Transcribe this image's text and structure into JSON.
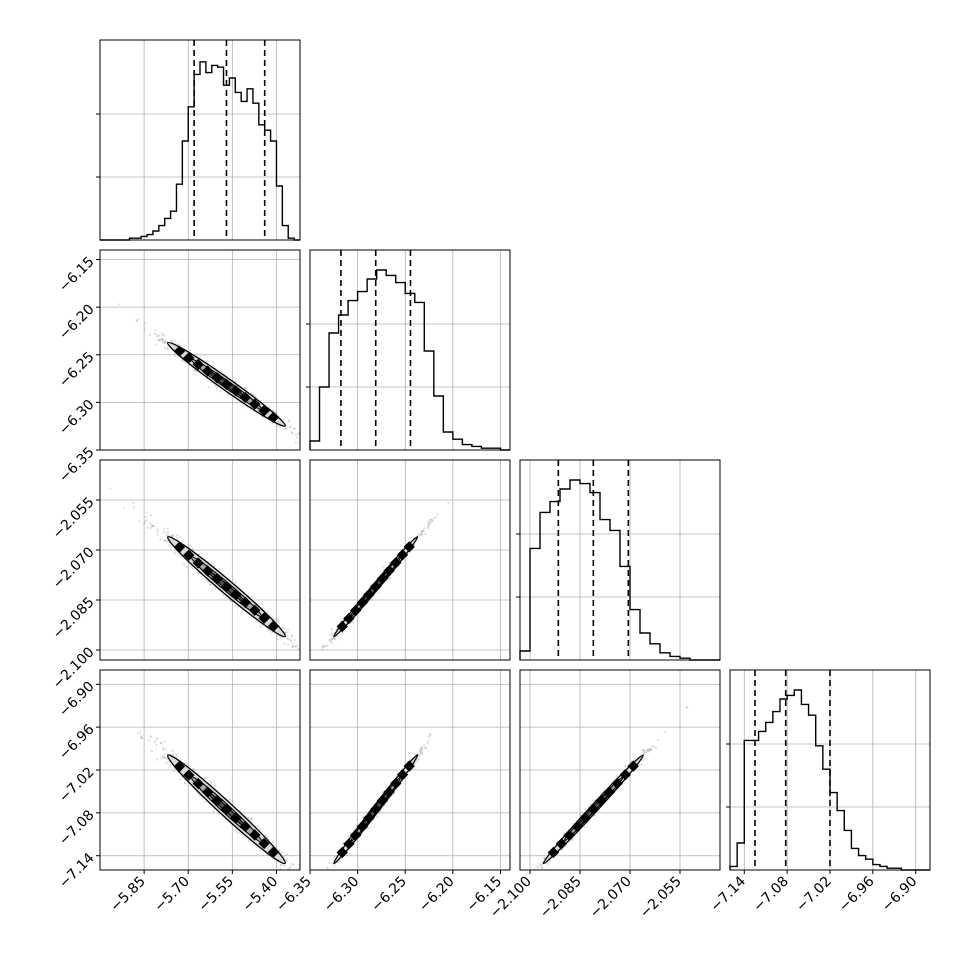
{
  "chart_data": {
    "type": "corner",
    "parameters": [
      {
        "range": [
          -6.0,
          -5.32
        ],
        "ticks": [
          -5.85,
          -5.7,
          -5.55,
          -5.4
        ],
        "tick_labels": [
          "−5.85",
          "−5.70",
          "−5.55",
          "−5.40"
        ]
      },
      {
        "range": [
          -6.35,
          -6.14
        ],
        "ticks": [
          -6.35,
          -6.3,
          -6.25,
          -6.2,
          -6.15
        ],
        "tick_labels": [
          "−6.35",
          "−6.30",
          "−6.25",
          "−6.20",
          "−6.15"
        ]
      },
      {
        "range": [
          -2.103,
          -2.043
        ],
        "ticks": [
          -2.1,
          -2.085,
          -2.07,
          -2.055
        ],
        "tick_labels": [
          "−2.100",
          "−2.085",
          "−2.070",
          "−2.055"
        ]
      },
      {
        "range": [
          -7.16,
          -6.88
        ],
        "ticks": [
          -7.14,
          -7.08,
          -7.02,
          -6.96,
          -6.9
        ],
        "tick_labels": [
          "−7.14",
          "−7.08",
          "−7.02",
          "−6.96",
          "−6.90"
        ]
      }
    ],
    "histograms": [
      {
        "bin_edges": [
          -6.0,
          -5.98,
          -5.96,
          -5.94,
          -5.92,
          -5.9,
          -5.88,
          -5.86,
          -5.84,
          -5.82,
          -5.8,
          -5.78,
          -5.76,
          -5.74,
          -5.72,
          -5.7,
          -5.68,
          -5.66,
          -5.64,
          -5.62,
          -5.6,
          -5.58,
          -5.56,
          -5.54,
          -5.52,
          -5.5,
          -5.48,
          -5.46,
          -5.44,
          -5.42,
          -5.4,
          -5.38,
          -5.36,
          -5.34,
          -5.32
        ],
        "counts": [
          0.0,
          0.0,
          0.0,
          0.0,
          0.0,
          0.01,
          0.01,
          0.02,
          0.03,
          0.05,
          0.08,
          0.12,
          0.16,
          0.31,
          0.55,
          0.74,
          0.92,
          0.99,
          0.93,
          0.97,
          0.96,
          0.86,
          0.9,
          0.82,
          0.77,
          0.84,
          0.76,
          0.64,
          0.61,
          0.55,
          0.3,
          0.08,
          0.01,
          0.0
        ],
        "quantiles": [
          -5.68,
          -5.57,
          -5.44
        ]
      },
      {
        "bin_edges": [
          -6.35,
          -6.34,
          -6.33,
          -6.32,
          -6.31,
          -6.3,
          -6.29,
          -6.28,
          -6.27,
          -6.26,
          -6.25,
          -6.24,
          -6.23,
          -6.22,
          -6.21,
          -6.2,
          -6.19,
          -6.18,
          -6.17,
          -6.16,
          -6.15,
          -6.14
        ],
        "counts": [
          0.05,
          0.35,
          0.65,
          0.75,
          0.83,
          0.88,
          0.95,
          1.0,
          0.97,
          0.93,
          0.87,
          0.82,
          0.55,
          0.3,
          0.1,
          0.06,
          0.03,
          0.02,
          0.01,
          0.01,
          0.0
        ],
        "quantiles": [
          -6.3175,
          -6.281,
          -6.2445
        ]
      },
      {
        "bin_edges": [
          -2.103,
          -2.1,
          -2.097,
          -2.094,
          -2.091,
          -2.088,
          -2.085,
          -2.082,
          -2.079,
          -2.076,
          -2.073,
          -2.07,
          -2.067,
          -2.064,
          -2.061,
          -2.058,
          -2.055,
          -2.052,
          -2.049,
          -2.046,
          -2.043
        ],
        "counts": [
          0.05,
          0.62,
          0.82,
          0.88,
          0.95,
          1.0,
          0.98,
          0.93,
          0.78,
          0.72,
          0.52,
          0.28,
          0.15,
          0.09,
          0.04,
          0.02,
          0.01,
          0.0,
          0.0,
          0.0
        ],
        "quantiles": [
          -2.0915,
          -2.081,
          -2.0705
        ]
      },
      {
        "bin_edges": [
          -7.16,
          -7.15,
          -7.14,
          -7.13,
          -7.12,
          -7.11,
          -7.1,
          -7.09,
          -7.08,
          -7.07,
          -7.06,
          -7.05,
          -7.04,
          -7.03,
          -7.02,
          -7.01,
          -7.0,
          -6.99,
          -6.98,
          -6.97,
          -6.96,
          -6.95,
          -6.94,
          -6.93,
          -6.92,
          -6.91,
          -6.9,
          -6.89,
          -6.88
        ],
        "counts": [
          0.02,
          0.15,
          0.72,
          0.72,
          0.77,
          0.82,
          0.88,
          0.95,
          0.97,
          1.0,
          0.92,
          0.86,
          0.69,
          0.56,
          0.43,
          0.33,
          0.22,
          0.12,
          0.08,
          0.06,
          0.03,
          0.02,
          0.01,
          0.01,
          0.0,
          0.0,
          0.0,
          0.0
        ],
        "quantiles": [
          -7.125,
          -7.082,
          -7.02
        ]
      }
    ],
    "correlations": [
      [
        1.0,
        -0.985,
        -0.985,
        -0.985
      ],
      [
        -0.985,
        1.0,
        0.995,
        0.995
      ],
      [
        -0.985,
        0.995,
        1.0,
        0.995
      ],
      [
        -0.985,
        0.995,
        0.995,
        1.0
      ]
    ],
    "marginal_center": [
      -5.57,
      -6.281,
      -2.081,
      -7.075
    ],
    "marginal_sd": [
      0.1,
      0.022,
      0.0075,
      0.038
    ],
    "grid": true,
    "style": {
      "line_color": "#000000",
      "grid_color": "#b0b0b0",
      "point_color": "#808080",
      "fill_dark": "#000000",
      "fill_light": "#d9d9d9"
    }
  }
}
